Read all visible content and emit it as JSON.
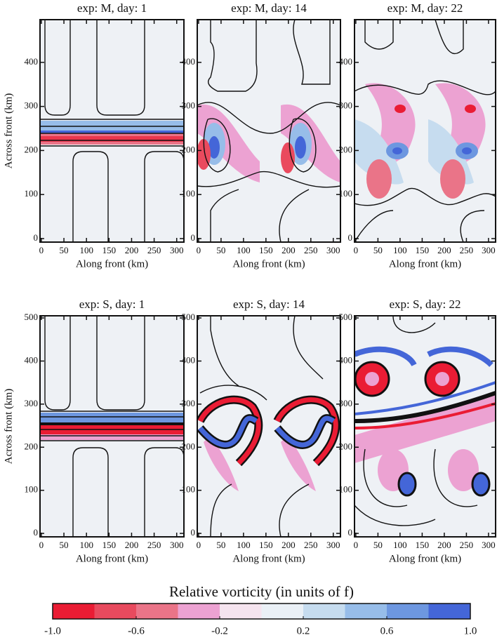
{
  "chart_data": [
    {
      "type": "contour",
      "title": "exp: M, day: 1",
      "xlabel": "Along front (km)",
      "ylabel": "Across front (km)",
      "xlim": [
        -3,
        316
      ],
      "ylim": [
        -8,
        497
      ],
      "xticks": [
        0,
        50,
        100,
        150,
        200,
        250,
        300
      ],
      "yticks": [
        0,
        100,
        200,
        300,
        400
      ]
    },
    {
      "type": "contour",
      "title": "exp: M, day: 14",
      "xlabel": "Along front (km)",
      "xlim": [
        -3,
        316
      ],
      "ylim": [
        -8,
        497
      ],
      "xticks": [
        0,
        50,
        100,
        150,
        200,
        250,
        300
      ],
      "yticks": [
        0,
        100,
        200,
        300,
        400
      ]
    },
    {
      "type": "contour",
      "title": "exp: M, day: 22",
      "xlabel": "Along front (km)",
      "xlim": [
        -3,
        316
      ],
      "ylim": [
        -8,
        497
      ],
      "xticks": [
        0,
        50,
        100,
        150,
        200,
        250,
        300
      ],
      "yticks": [
        0,
        100,
        200,
        300,
        400
      ]
    },
    {
      "type": "contour",
      "title": "exp: S, day: 1",
      "xlabel": "Along front (km)",
      "ylabel": "Across front (km)",
      "xlim": [
        -3,
        316
      ],
      "ylim": [
        -8,
        505
      ],
      "xticks": [
        0,
        50,
        100,
        150,
        200,
        250,
        300
      ],
      "yticks": [
        0,
        100,
        200,
        300,
        400,
        500
      ]
    },
    {
      "type": "contour",
      "title": "exp: S, day: 14",
      "xlabel": "Along front (km)",
      "xlim": [
        -3,
        316
      ],
      "ylim": [
        -8,
        505
      ],
      "xticks": [
        0,
        50,
        100,
        150,
        200,
        250,
        300
      ],
      "yticks": [
        0,
        100,
        200,
        300,
        400,
        500
      ]
    },
    {
      "type": "contour",
      "title": "exp: S, day: 22",
      "xlabel": "Along front (km)",
      "xlim": [
        -3,
        316
      ],
      "ylim": [
        -8,
        505
      ],
      "xticks": [
        0,
        50,
        100,
        150,
        200,
        250,
        300
      ],
      "yticks": [
        0,
        100,
        200,
        300,
        400,
        500
      ]
    },
    {
      "type": "colorbar",
      "title": "Relative vorticity (in units of f)",
      "xlim": [
        -1,
        1
      ],
      "xticks": [
        {
          "value": -1,
          "label": "-1.0"
        },
        -0.6,
        -0.2,
        0.2,
        0.6,
        {
          "value": 1,
          "label": "1.0"
        }
      ],
      "colors": [
        "#ea1c34",
        "#e84a5e",
        "#ea7488",
        "#eca2d2",
        "#f5e4ef",
        "#eaf0f6",
        "#c6dcef",
        "#97bde9",
        "#6d97e0",
        "#4466d8"
      ]
    }
  ]
}
